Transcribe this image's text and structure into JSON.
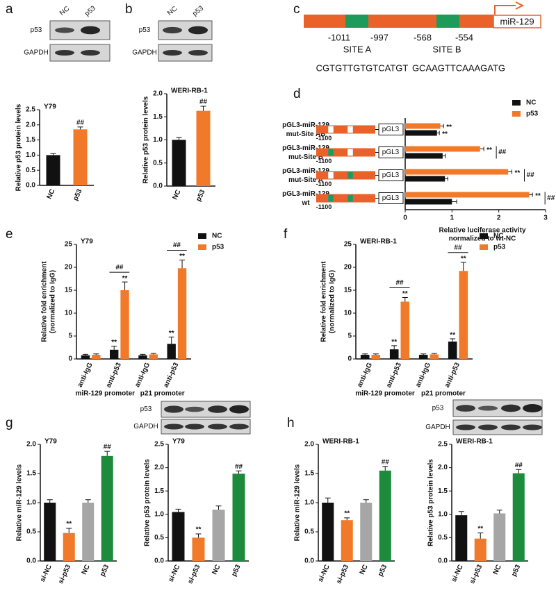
{
  "panel_letters": [
    "a",
    "b",
    "c",
    "d",
    "e",
    "f",
    "g",
    "h"
  ],
  "blots": [
    {
      "columns": [
        "NC",
        "p53"
      ],
      "rows": [
        "p53",
        "GAPDH"
      ]
    },
    {
      "columns": [
        "NC",
        "p53"
      ],
      "rows": [
        "p53",
        "GAPDH"
      ]
    },
    {
      "rows": [
        "p53",
        "GAPDH"
      ]
    },
    {
      "rows": [
        "p53",
        "GAPDH"
      ]
    }
  ],
  "promoter": {
    "gene": "miR-129",
    "positions": [
      "-1011",
      "-997",
      "-568",
      "-554"
    ],
    "sites": [
      "SITE A",
      "SITE B"
    ],
    "sequences": [
      "CGTGTTGTGTCATGT",
      "GCAAGTTCAAAGATG"
    ]
  },
  "chart_data": [
    {
      "type": "bar",
      "title": "Y79",
      "ylabel": "Relative p53 protein levels",
      "categories": [
        "NC",
        "p53"
      ],
      "values": [
        1.0,
        1.85
      ],
      "errors": [
        0.05,
        0.08
      ],
      "colors": [
        "#111111",
        "#f07a2a"
      ],
      "annotations": [
        null,
        "##"
      ],
      "ylim": [
        0,
        2.5
      ],
      "yticks": [
        {
          "value": 0,
          "label": "0.0"
        },
        0.5,
        {
          "value": 1,
          "label": "1.0"
        },
        1.5,
        {
          "value": 2,
          "label": "2.0"
        },
        2.5
      ]
    },
    {
      "type": "bar",
      "title": "WERI-RB-1",
      "ylabel": "Relative p53 protein levels",
      "categories": [
        "NC",
        "p53"
      ],
      "values": [
        1.0,
        1.63
      ],
      "errors": [
        0.05,
        0.1
      ],
      "colors": [
        "#111111",
        "#f07a2a"
      ],
      "annotations": [
        null,
        "##"
      ],
      "ylim": [
        0,
        2.0
      ],
      "yticks": [
        {
          "value": 0,
          "label": "0.0"
        },
        0.5,
        {
          "value": 1,
          "label": "1.0"
        },
        1.5,
        {
          "value": 2,
          "label": "2.0"
        }
      ]
    },
    {
      "type": "hbar",
      "xlabel": [
        "Relative luciferase activity",
        "normalized to wt-NC"
      ],
      "categories": [
        [
          "pGL3-miR-129",
          "mut-Site AB"
        ],
        [
          "pGL3-miR-129",
          "mut-Site B"
        ],
        [
          "pGL3-miR-129",
          "mut-Site A"
        ],
        [
          "pGL3-miR-129",
          "wt"
        ]
      ],
      "construct_label": "-1100",
      "vector_label": "pGL3",
      "series": [
        {
          "name": "NC",
          "color": "#111111",
          "values": [
            0.68,
            0.8,
            0.85,
            1.0
          ],
          "errors": [
            0.05,
            0.06,
            0.06,
            0.1
          ],
          "annotations": [
            "**",
            null,
            null,
            null
          ]
        },
        {
          "name": "p53",
          "color": "#f07a2a",
          "values": [
            0.75,
            1.6,
            2.2,
            2.65
          ],
          "errors": [
            0.07,
            0.08,
            0.08,
            0.07
          ],
          "annotations": [
            "**",
            "**",
            "**",
            "**"
          ]
        }
      ],
      "row_annotations": [
        null,
        "##",
        "##",
        "##"
      ],
      "xlim": [
        0,
        3
      ],
      "xticks": [
        0,
        1,
        2,
        3
      ],
      "legend": "upper-right"
    },
    {
      "type": "groupbar",
      "title": "Y79",
      "ylabel": [
        "Relative fold enrichment",
        "(normalized to IgG)"
      ],
      "categories": [
        "anti-IgG",
        "anti-p53",
        "anti-IgG",
        "anti-p53"
      ],
      "groups": [
        "miR-129 promoter",
        "p21 promoter"
      ],
      "series": [
        {
          "name": "NC",
          "color": "#111111",
          "values": [
            0.8,
            2.0,
            0.8,
            3.3
          ],
          "errors": [
            0.2,
            0.8,
            0.2,
            1.5
          ],
          "annotations": [
            null,
            "**",
            null,
            "**"
          ]
        },
        {
          "name": "p53",
          "color": "#f07a2a",
          "values": [
            0.9,
            15.0,
            1.0,
            19.8
          ],
          "errors": [
            0.2,
            1.8,
            0.2,
            1.8
          ],
          "annotations": [
            null,
            "**",
            null,
            "**"
          ]
        }
      ],
      "category_annotations": [
        null,
        "##",
        null,
        "##"
      ],
      "ylim": [
        0,
        25
      ],
      "yticks": [
        0,
        5,
        10,
        15,
        20,
        25
      ],
      "legend": "upper-right"
    },
    {
      "type": "groupbar",
      "title": "WERI-RB-1",
      "ylabel": [
        "Relative fold enrichment",
        "(normalized to IgG)"
      ],
      "categories": [
        "anti-IgG",
        "anti-p53",
        "anti-IgG",
        "anti-p53"
      ],
      "groups": [
        "miR-129 promoter",
        "p21 promoter"
      ],
      "series": [
        {
          "name": "NC",
          "color": "#111111",
          "values": [
            0.9,
            2.1,
            0.9,
            3.8
          ],
          "errors": [
            0.2,
            0.8,
            0.2,
            0.6
          ],
          "annotations": [
            null,
            "**",
            null,
            "**"
          ]
        },
        {
          "name": "p53",
          "color": "#f07a2a",
          "values": [
            0.9,
            12.5,
            1.0,
            19.2
          ],
          "errors": [
            0.2,
            0.9,
            0.2,
            1.9
          ],
          "annotations": [
            null,
            "**",
            null,
            "**"
          ]
        }
      ],
      "category_annotations": [
        null,
        "##",
        null,
        "##"
      ],
      "ylim": [
        0,
        25
      ],
      "yticks": [
        0,
        5,
        10,
        15,
        20,
        25
      ],
      "legend": "upper-right"
    },
    {
      "type": "bar",
      "title": "Y79",
      "ylabel": "Relative miR-129 levels",
      "categories": [
        "si-NC",
        "si-p53",
        "NC",
        "p53"
      ],
      "values": [
        1.0,
        0.48,
        1.0,
        1.8
      ],
      "errors": [
        0.05,
        0.08,
        0.05,
        0.08
      ],
      "colors": [
        "#111111",
        "#f07a2a",
        "#a6a6a6",
        "#1e8a3c"
      ],
      "annotations": [
        null,
        "**",
        null,
        "##"
      ],
      "ylim": [
        0,
        2.0
      ],
      "yticks": [
        {
          "value": 0,
          "label": "0.0"
        },
        0.5,
        {
          "value": 1,
          "label": "1.0"
        },
        1.5,
        {
          "value": 2,
          "label": "2.0"
        }
      ]
    },
    {
      "type": "bar",
      "title": "Y79",
      "ylabel": "Relative p53 protein levels",
      "categories": [
        "si-NC",
        "si-p53",
        "NC",
        "p53"
      ],
      "values": [
        1.05,
        0.5,
        1.1,
        1.87
      ],
      "errors": [
        0.06,
        0.08,
        0.08,
        0.06
      ],
      "colors": [
        "#111111",
        "#f07a2a",
        "#a6a6a6",
        "#1e8a3c"
      ],
      "annotations": [
        null,
        "**",
        null,
        "##"
      ],
      "ylim": [
        0,
        2.5
      ],
      "yticks": [
        {
          "value": 0,
          "label": "0.0"
        },
        0.5,
        {
          "value": 1,
          "label": "1.0"
        },
        1.5,
        {
          "value": 2,
          "label": "2.0"
        },
        2.5
      ]
    },
    {
      "type": "bar",
      "title": "WERI-RB-1",
      "ylabel": "Relative miR-129 levels",
      "categories": [
        "si-NC",
        "si-p53",
        "NC",
        "p53"
      ],
      "values": [
        1.0,
        0.7,
        1.0,
        1.55
      ],
      "errors": [
        0.08,
        0.04,
        0.05,
        0.07
      ],
      "colors": [
        "#111111",
        "#f07a2a",
        "#a6a6a6",
        "#1e8a3c"
      ],
      "annotations": [
        null,
        "**",
        null,
        "##"
      ],
      "ylim": [
        0,
        2.0
      ],
      "yticks": [
        {
          "value": 0,
          "label": "0.0"
        },
        0.5,
        {
          "value": 1,
          "label": "1.0"
        },
        1.5,
        {
          "value": 2,
          "label": "2.0"
        }
      ]
    },
    {
      "type": "bar",
      "title": "WERI-RB-1",
      "ylabel": "Relative p53 protein levels",
      "categories": [
        "si-NC",
        "si-p53",
        "NC",
        "p53"
      ],
      "values": [
        0.98,
        0.48,
        1.02,
        1.88
      ],
      "errors": [
        0.08,
        0.12,
        0.07,
        0.08
      ],
      "colors": [
        "#111111",
        "#f07a2a",
        "#a6a6a6",
        "#1e8a3c"
      ],
      "annotations": [
        null,
        "**",
        null,
        "##"
      ],
      "ylim": [
        0,
        2.5
      ],
      "yticks": [
        {
          "value": 0,
          "label": "0.0"
        },
        0.5,
        {
          "value": 1,
          "label": "1.0"
        },
        1.5,
        {
          "value": 2,
          "label": "2.0"
        },
        2.5
      ]
    }
  ]
}
